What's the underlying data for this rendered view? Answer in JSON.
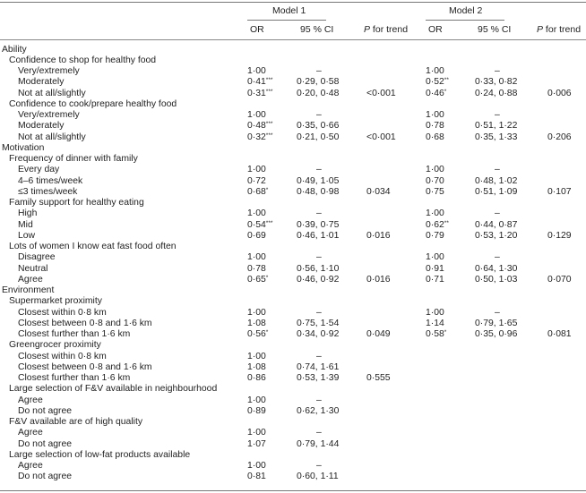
{
  "table": {
    "header": {
      "model1": "Model 1",
      "model2": "Model 2",
      "columns": {
        "or1": "OR",
        "ci1": "95 % CI",
        "p1_italic": "P",
        "p1_rest": " for trend",
        "or2": "OR",
        "ci2": "95 % CI",
        "p2_italic": "P",
        "p2_rest": " for trend"
      }
    },
    "rows": [
      {
        "level": 0,
        "label": "Ability"
      },
      {
        "level": 1,
        "label": "Confidence to shop for healthy food"
      },
      {
        "level": 2,
        "label": "Very/extremely",
        "or1": "1·00",
        "ci1": "–",
        "or2": "1·00",
        "ci2": "–"
      },
      {
        "level": 2,
        "label": "Moderately",
        "or1": "0·41",
        "sig1": "***",
        "ci1": "0·29, 0·58",
        "or2": "0·52",
        "sig2": "**",
        "ci2": "0·33, 0·82"
      },
      {
        "level": 2,
        "label": "Not at all/slightly",
        "or1": "0·31",
        "sig1": "***",
        "ci1": "0·20, 0·48",
        "p1": "<0·001",
        "or2": "0·46",
        "sig2": "*",
        "ci2": "0·24, 0·88",
        "p2": "0·006"
      },
      {
        "level": 1,
        "label": "Confidence to cook/prepare healthy food"
      },
      {
        "level": 2,
        "label": "Very/extremely",
        "or1": "1·00",
        "ci1": "–",
        "or2": "1·00",
        "ci2": "–"
      },
      {
        "level": 2,
        "label": "Moderately",
        "or1": "0·48",
        "sig1": "***",
        "ci1": "0·35, 0·66",
        "or2": "0·78",
        "ci2": "0·51, 1·22"
      },
      {
        "level": 2,
        "label": "Not at all/slightly",
        "or1": "0·32",
        "sig1": "***",
        "ci1": "0·21, 0·50",
        "p1": "<0·001",
        "or2": "0·68",
        "ci2": "0·35, 1·33",
        "p2": "0·206"
      },
      {
        "level": 0,
        "label": "Motivation"
      },
      {
        "level": 1,
        "label": "Frequency of dinner with family"
      },
      {
        "level": 2,
        "label": "Every day",
        "or1": "1·00",
        "ci1": "–",
        "or2": "1·00",
        "ci2": "–"
      },
      {
        "level": 2,
        "label": "4–6 times/week",
        "or1": "0·72",
        "ci1": "0·49, 1·05",
        "or2": "0·70",
        "ci2": "0·48, 1·02"
      },
      {
        "level": 2,
        "label": "≤3 times/week",
        "or1": "0·68",
        "sig1": "*",
        "ci1": "0·48, 0·98",
        "p1": "0·034",
        "or2": "0·75",
        "ci2": "0·51, 1·09",
        "p2": "0·107"
      },
      {
        "level": 1,
        "label": "Family support for healthy eating"
      },
      {
        "level": 2,
        "label": "High",
        "or1": "1·00",
        "ci1": "–",
        "or2": "1·00",
        "ci2": "–"
      },
      {
        "level": 2,
        "label": "Mid",
        "or1": "0·54",
        "sig1": "***",
        "ci1": "0·39, 0·75",
        "or2": "0·62",
        "sig2": "**",
        "ci2": "0·44, 0·87"
      },
      {
        "level": 2,
        "label": "Low",
        "or1": "0·69",
        "ci1": "0·46, 1·01",
        "p1": "0·016",
        "or2": "0·79",
        "ci2": "0·53, 1·20",
        "p2": "0·129"
      },
      {
        "level": 1,
        "label": "Lots of women I know eat fast food often"
      },
      {
        "level": 2,
        "label": "Disagree",
        "or1": "1·00",
        "ci1": "–",
        "or2": "1·00",
        "ci2": "–"
      },
      {
        "level": 2,
        "label": "Neutral",
        "or1": "0·78",
        "ci1": "0·56, 1·10",
        "or2": "0·91",
        "ci2": "0·64, 1·30"
      },
      {
        "level": 2,
        "label": "Agree",
        "or1": "0·65",
        "sig1": "*",
        "ci1": "0·46, 0·92",
        "p1": "0·016",
        "or2": "0·71",
        "ci2": "0·50, 1·03",
        "p2": "0·070"
      },
      {
        "level": 0,
        "label": "Environment"
      },
      {
        "level": 1,
        "label": "Supermarket proximity"
      },
      {
        "level": 2,
        "label": "Closest within 0·8 km",
        "or1": "1·00",
        "ci1": "–",
        "or2": "1·00",
        "ci2": "–"
      },
      {
        "level": 2,
        "label": "Closest between 0·8 and 1·6 km",
        "or1": "1·08",
        "ci1": "0·75, 1·54",
        "or2": "1·14",
        "ci2": "0·79, 1·65"
      },
      {
        "level": 2,
        "label": "Closest further than 1·6 km",
        "or1": "0·56",
        "sig1": "*",
        "ci1": "0·34, 0·92",
        "p1": "0·049",
        "or2": "0·58",
        "sig2": "*",
        "ci2": "0·35, 0·96",
        "p2": "0·081"
      },
      {
        "level": 1,
        "label": "Greengrocer proximity"
      },
      {
        "level": 2,
        "label": "Closest within 0·8 km",
        "or1": "1·00",
        "ci1": "–"
      },
      {
        "level": 2,
        "label": "Closest between 0·8 and 1·6 km",
        "or1": "1·08",
        "ci1": "0·74, 1·61"
      },
      {
        "level": 2,
        "label": "Closest further than 1·6 km",
        "or1": "0·86",
        "ci1": "0·53, 1·39",
        "p1": "0·555"
      },
      {
        "level": 1,
        "label": "Large selection of F&V available in neighbourhood"
      },
      {
        "level": 2,
        "label": "Agree",
        "or1": "1·00",
        "ci1": "–"
      },
      {
        "level": 2,
        "label": "Do not agree",
        "or1": "0·89",
        "ci1": "0·62, 1·30"
      },
      {
        "level": 1,
        "label": "F&V available are of high quality"
      },
      {
        "level": 2,
        "label": "Agree",
        "or1": "1·00",
        "ci1": "–"
      },
      {
        "level": 2,
        "label": "Do not agree",
        "or1": "1·07",
        "ci1": "0·79, 1·44"
      },
      {
        "level": 1,
        "label": "Large selection of low-fat products available"
      },
      {
        "level": 2,
        "label": "Agree",
        "or1": "1·00",
        "ci1": "–"
      },
      {
        "level": 2,
        "label": "Do not agree",
        "or1": "0·81",
        "ci1": "0·60, 1·11"
      }
    ]
  }
}
